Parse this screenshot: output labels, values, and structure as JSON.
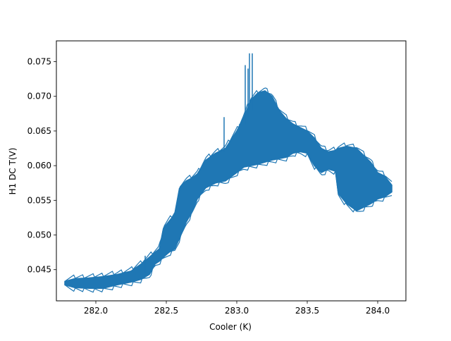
{
  "chart_data": {
    "type": "line",
    "title": "",
    "xlabel": "Cooler (K)",
    "ylabel": "H1 DC T(V)",
    "xlim": [
      281.72,
      284.2
    ],
    "ylim": [
      0.0405,
      0.078
    ],
    "xticks": [
      282.0,
      282.5,
      283.0,
      283.5,
      284.0
    ],
    "xtick_labels": [
      "282.0",
      "282.5",
      "283.0",
      "283.5",
      "284.0"
    ],
    "yticks": [
      0.045,
      0.05,
      0.055,
      0.06,
      0.065,
      0.07,
      0.075
    ],
    "ytick_labels": [
      "0.045",
      "0.050",
      "0.055",
      "0.060",
      "0.065",
      "0.070",
      "0.075"
    ],
    "grid": false,
    "line_color": "#1f77b4",
    "series": [
      {
        "description_of_band": "noisy signal drawn as a filled envelope between lower and upper values",
        "x": [
          281.78,
          281.85,
          281.95,
          282.05,
          282.15,
          282.25,
          282.32,
          282.38,
          282.42,
          282.45,
          282.48,
          282.52,
          282.56,
          282.6,
          282.64,
          282.68,
          282.72,
          282.78,
          282.85,
          282.92,
          283.0,
          283.05,
          283.1,
          283.15,
          283.2,
          283.25,
          283.3,
          283.35,
          283.4,
          283.45,
          283.5,
          283.55,
          283.6,
          283.65,
          283.7,
          283.72,
          283.78,
          283.85,
          283.9,
          283.95,
          284.0,
          284.05,
          284.1
        ],
        "lower": [
          0.0428,
          0.0424,
          0.0423,
          0.0423,
          0.0428,
          0.0432,
          0.0436,
          0.0443,
          0.0458,
          0.0462,
          0.0468,
          0.0475,
          0.048,
          0.0498,
          0.0518,
          0.0532,
          0.0552,
          0.0568,
          0.0575,
          0.0578,
          0.059,
          0.0598,
          0.06,
          0.0602,
          0.0605,
          0.0608,
          0.061,
          0.0612,
          0.0618,
          0.062,
          0.0618,
          0.06,
          0.059,
          0.0595,
          0.0592,
          0.056,
          0.0545,
          0.0535,
          0.054,
          0.0545,
          0.0552,
          0.0555,
          0.0562
        ],
        "upper": [
          0.0433,
          0.0437,
          0.0438,
          0.044,
          0.0443,
          0.0448,
          0.0458,
          0.0468,
          0.0475,
          0.048,
          0.051,
          0.052,
          0.053,
          0.057,
          0.0578,
          0.0582,
          0.0588,
          0.0608,
          0.0618,
          0.0625,
          0.065,
          0.067,
          0.0695,
          0.0705,
          0.0708,
          0.07,
          0.068,
          0.0668,
          0.066,
          0.0655,
          0.065,
          0.064,
          0.0625,
          0.062,
          0.0622,
          0.0625,
          0.0628,
          0.0625,
          0.0615,
          0.0605,
          0.059,
          0.0585,
          0.0572
        ]
      }
    ],
    "spikes": [
      {
        "x": 282.91,
        "y_from": 0.062,
        "y_to": 0.067
      },
      {
        "x": 283.02,
        "y_from": 0.064,
        "y_to": 0.066
      },
      {
        "x": 283.06,
        "y_from": 0.066,
        "y_to": 0.0745
      },
      {
        "x": 283.08,
        "y_from": 0.067,
        "y_to": 0.074
      },
      {
        "x": 283.09,
        "y_from": 0.068,
        "y_to": 0.0762
      },
      {
        "x": 283.11,
        "y_from": 0.068,
        "y_to": 0.0762
      },
      {
        "x": 282.35,
        "y_from": 0.0445,
        "y_to": 0.047
      }
    ]
  }
}
